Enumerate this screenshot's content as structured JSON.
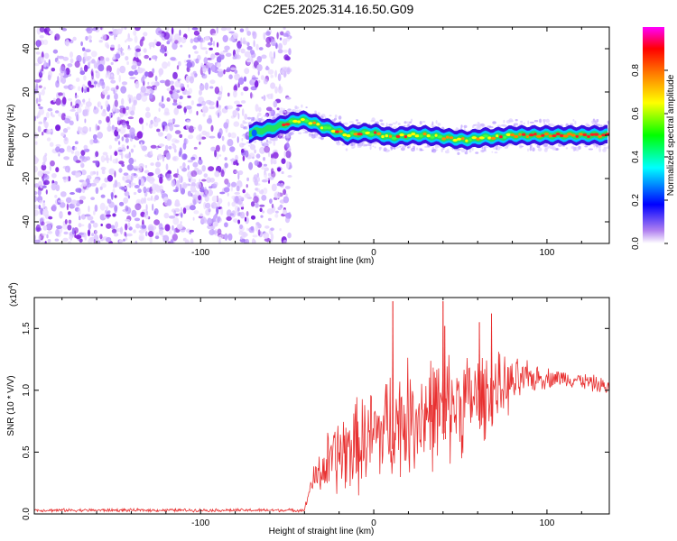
{
  "chart_data": [
    {
      "type": "heatmap",
      "title": "C2E5.2025.314.16.50.G09",
      "xlabel": "Height of straight line (km)",
      "ylabel": "Frequency (Hz)",
      "xlim": [
        -196,
        136
      ],
      "ylim": [
        -50,
        50
      ],
      "xticks": [
        -100,
        0,
        100
      ],
      "xtick_labels": [
        "-100",
        "0",
        "100"
      ],
      "yticks": [
        -40,
        -20,
        0,
        20,
        40
      ],
      "ytick_labels": [
        "-40",
        "-20",
        "0",
        "20",
        "40"
      ],
      "noise_region_x": [
        -196,
        -48
      ],
      "ridge": {
        "x": [
          -72,
          -60,
          -48,
          -42,
          -36,
          -30,
          -22,
          -15,
          -8,
          0,
          10,
          20,
          30,
          40,
          50,
          56,
          62,
          70,
          80,
          90,
          100,
          110,
          120,
          136
        ],
        "freq": [
          1,
          3,
          6,
          7,
          6,
          4,
          2,
          0,
          1,
          1,
          -1,
          0,
          0,
          -1,
          -2,
          -2,
          -1,
          -1,
          0,
          0,
          0,
          0,
          0,
          0
        ]
      },
      "colorbar": {
        "label": "Normalized spectral amplitude",
        "range": [
          0,
          1
        ],
        "ticks": [
          0.0,
          0.2,
          0.4,
          0.6,
          0.8
        ],
        "tick_labels": [
          "0.0",
          "0.2",
          "0.4",
          "0.6",
          "0.8"
        ],
        "colors": [
          "#ffffff",
          "#8a2be2",
          "#0000ff",
          "#00ffff",
          "#00ff00",
          "#ffff00",
          "#ff8000",
          "#ff0000",
          "#ff00ff"
        ]
      }
    },
    {
      "type": "line",
      "xlabel": "Height of straight line (km)",
      "ylabel": "SNR (10 * V/V)",
      "y_multiplier": "(x10",
      "y_multiplier_exp": "4",
      "y_multiplier_close": ")",
      "xlim": [
        -196,
        136
      ],
      "ylim": [
        0,
        1.75
      ],
      "xticks": [
        -100,
        0,
        100
      ],
      "xtick_labels": [
        "-100",
        "0",
        "100"
      ],
      "yticks": [
        0,
        0.5,
        1.0,
        1.5
      ],
      "ytick_labels": [
        "0.0",
        "0.5",
        "1.0",
        "1.5"
      ],
      "series": [
        {
          "name": "SNR",
          "color": "#e83030",
          "envelope": {
            "x": [
              -196,
              -40,
              -36,
              -32,
              -28,
              -20,
              -10,
              0,
              10,
              20,
              30,
              40,
              50,
              60,
              70,
              80,
              90,
              100,
              110,
              120,
              136
            ],
            "mean": [
              0.03,
              0.03,
              0.25,
              0.32,
              0.38,
              0.48,
              0.55,
              0.62,
              0.72,
              0.78,
              0.82,
              0.85,
              0.9,
              0.95,
              1.0,
              1.05,
              1.1,
              1.1,
              1.1,
              1.08,
              1.02
            ],
            "spread": [
              0.015,
              0.015,
              0.1,
              0.2,
              0.3,
              0.4,
              0.45,
              0.5,
              0.55,
              0.55,
              0.55,
              0.55,
              0.5,
              0.45,
              0.35,
              0.25,
              0.15,
              0.1,
              0.08,
              0.08,
              0.08
            ]
          },
          "peaks": [
            {
              "x": 11,
              "y": 1.72
            },
            {
              "x": 40,
              "y": 1.72
            },
            {
              "x": 68,
              "y": 1.62
            },
            {
              "x": 61,
              "y": 1.55
            },
            {
              "x": 41,
              "y": 1.52
            }
          ]
        }
      ]
    }
  ]
}
